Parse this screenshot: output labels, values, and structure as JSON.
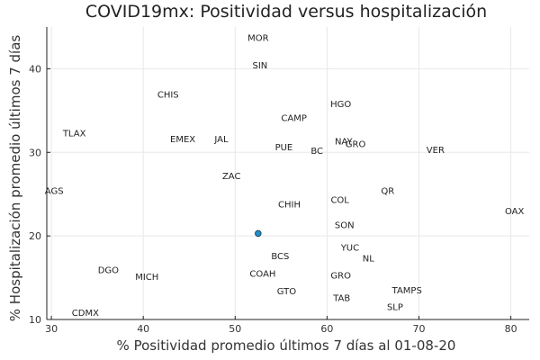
{
  "chart_data": {
    "type": "scatter",
    "title": "COVID19mx: Positividad versus hospitalización",
    "xlabel": "% Positividad promedio últimos 7 días al 01-08-20",
    "ylabel": "% Hospitalización promedio últimos 7 días",
    "xlim": [
      29.5,
      82
    ],
    "ylim": [
      10,
      45
    ],
    "xticks": [
      30,
      40,
      50,
      60,
      70,
      80
    ],
    "yticks": [
      10,
      20,
      30,
      40
    ],
    "grid": true,
    "legend": "none",
    "colors": {
      "point_fill": "#1f8fc9",
      "point_stroke": "#1a3d5c",
      "grid": "#e8e8e8"
    },
    "highlight_point": {
      "x": 52.5,
      "y": 20.3
    },
    "labels": [
      {
        "text": "MOR",
        "x": 52.5,
        "y": 43.7
      },
      {
        "text": "SIN",
        "x": 52.7,
        "y": 40.4
      },
      {
        "text": "CHIS",
        "x": 42.7,
        "y": 36.9
      },
      {
        "text": "HGO",
        "x": 61.5,
        "y": 35.8
      },
      {
        "text": "CAMP",
        "x": 56.4,
        "y": 34.1
      },
      {
        "text": "TLAX",
        "x": 32.5,
        "y": 32.3
      },
      {
        "text": "EMEX",
        "x": 44.3,
        "y": 31.6
      },
      {
        "text": "JAL",
        "x": 48.5,
        "y": 31.6
      },
      {
        "text": "NAY",
        "x": 61.8,
        "y": 31.3
      },
      {
        "text": "GRO",
        "x": 63.1,
        "y": 31.0
      },
      {
        "text": "PUE",
        "x": 55.3,
        "y": 30.6
      },
      {
        "text": "BC",
        "x": 58.9,
        "y": 30.2
      },
      {
        "text": "VER",
        "x": 71.8,
        "y": 30.3
      },
      {
        "text": "ZAC",
        "x": 49.6,
        "y": 27.2
      },
      {
        "text": "AGS",
        "x": 30.3,
        "y": 25.4
      },
      {
        "text": "QR",
        "x": 66.6,
        "y": 25.4
      },
      {
        "text": "COL",
        "x": 61.4,
        "y": 24.3
      },
      {
        "text": "CHIH",
        "x": 55.9,
        "y": 23.8
      },
      {
        "text": "OAX",
        "x": 80.4,
        "y": 23.0
      },
      {
        "text": "SON",
        "x": 61.9,
        "y": 21.3
      },
      {
        "text": "YUC",
        "x": 62.5,
        "y": 18.6
      },
      {
        "text": "NL",
        "x": 64.5,
        "y": 17.3
      },
      {
        "text": "BCS",
        "x": 54.9,
        "y": 17.6
      },
      {
        "text": "DGO",
        "x": 36.2,
        "y": 15.9
      },
      {
        "text": "COAH",
        "x": 53.0,
        "y": 15.5
      },
      {
        "text": "MICH",
        "x": 40.4,
        "y": 15.1
      },
      {
        "text": "GRO",
        "x": 61.5,
        "y": 15.3
      },
      {
        "text": "GTO",
        "x": 55.6,
        "y": 13.4
      },
      {
        "text": "TAMPS",
        "x": 68.7,
        "y": 13.5
      },
      {
        "text": "TAB",
        "x": 61.6,
        "y": 12.6
      },
      {
        "text": "SLP",
        "x": 67.4,
        "y": 11.5
      },
      {
        "text": "CDMX",
        "x": 33.7,
        "y": 10.8
      }
    ]
  }
}
